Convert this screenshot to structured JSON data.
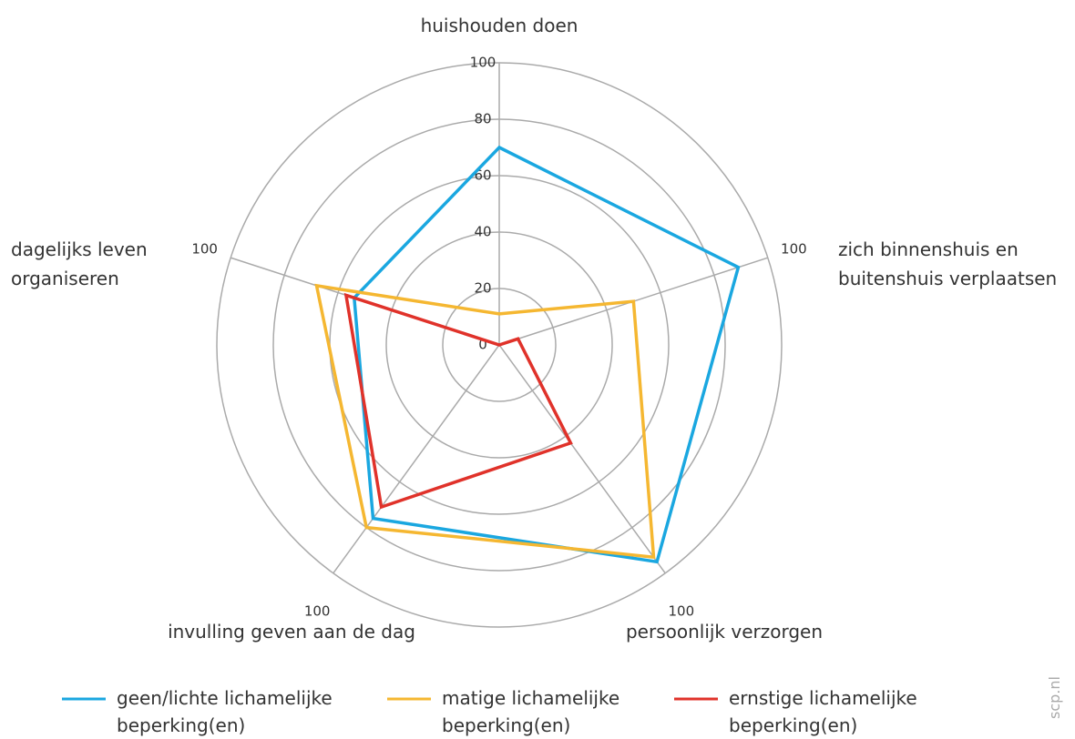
{
  "chart_data": {
    "type": "radar",
    "categories": [
      "huishouden doen",
      "zich binnenshuis en buitenshuis verplaatsen",
      "persoonlijk verzorgen",
      "invulling geven aan de dag",
      "dagelijks leven organiseren"
    ],
    "series": [
      {
        "name": "geen/lichte lichamelijke beperking(en)",
        "color": "#1aa7e0",
        "values": [
          70,
          89,
          95,
          76,
          54
        ]
      },
      {
        "name": "matige lichamelijke beperking(en)",
        "color": "#f5b731",
        "values": [
          11,
          50,
          93,
          80,
          68
        ]
      },
      {
        "name": "ernstige lichamelijke beperking(en)",
        "color": "#e0322a",
        "values": [
          0,
          7,
          43,
          71,
          57
        ]
      }
    ],
    "rlim": [
      0,
      100
    ],
    "rticks": [
      0,
      20,
      40,
      60,
      80,
      100
    ],
    "grid": true,
    "credit": "scp.nl"
  }
}
